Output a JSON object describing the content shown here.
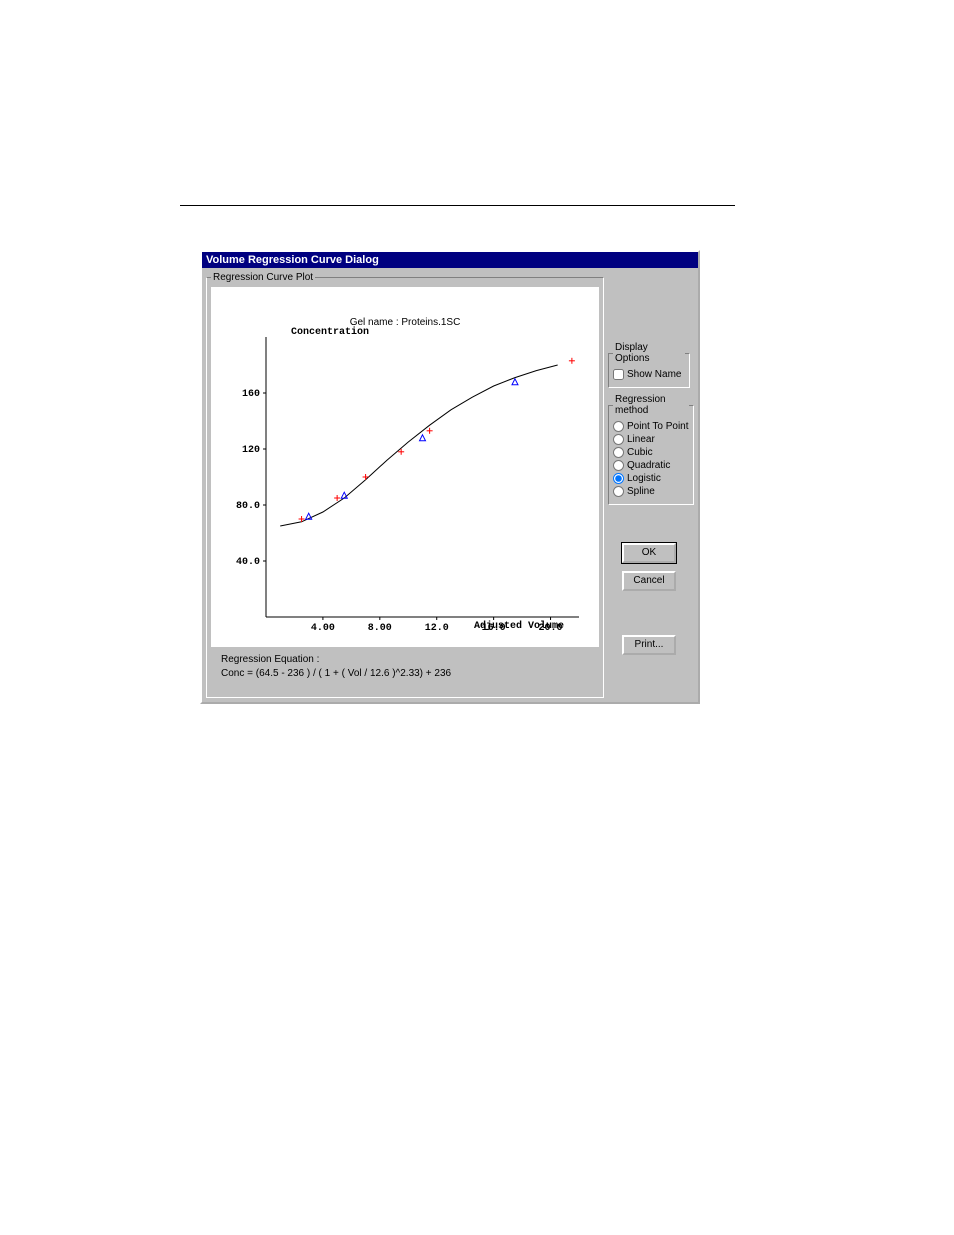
{
  "dialog": {
    "title": "Volume Regression Curve Dialog",
    "plot_group_label": "Regression Curve Plot",
    "chart": {
      "type": "line",
      "gel_name_label": "Gel name : Proteins.1SC",
      "y_axis_label": "Concentration",
      "x_axis_label": "Adjusted Volume",
      "y_ticks": [
        40.0,
        80.0,
        120,
        160
      ],
      "y_tick_labels": [
        "40.0",
        "80.0",
        "120",
        "160"
      ],
      "x_ticks": [
        4.0,
        8.0,
        12.0,
        16.0,
        20.0
      ],
      "x_tick_labels": [
        "4.00",
        "8.00",
        "12.0",
        "16.0",
        "20.0"
      ],
      "xlim": [
        0,
        22
      ],
      "ylim": [
        0,
        200
      ],
      "curve_color": "#000000",
      "line_width": 1,
      "data_marker_color": "#ff0000",
      "data_marker_style": "plus",
      "fit_marker_color": "#0000ff",
      "fit_marker_style": "triangle",
      "background_color": "#ffffff",
      "axis_color": "#000000",
      "data_points": [
        {
          "x": 2.5,
          "y": 70
        },
        {
          "x": 5.0,
          "y": 85
        },
        {
          "x": 7.0,
          "y": 100
        },
        {
          "x": 9.5,
          "y": 118
        },
        {
          "x": 11.5,
          "y": 133
        },
        {
          "x": 21.5,
          "y": 183
        }
      ],
      "fit_points": [
        {
          "x": 3.0,
          "y": 72
        },
        {
          "x": 5.5,
          "y": 87
        },
        {
          "x": 11.0,
          "y": 128
        },
        {
          "x": 17.5,
          "y": 168
        }
      ],
      "curve": [
        {
          "x": 1.0,
          "y": 65
        },
        {
          "x": 2.5,
          "y": 68
        },
        {
          "x": 4.0,
          "y": 75
        },
        {
          "x": 5.5,
          "y": 85
        },
        {
          "x": 7.0,
          "y": 98
        },
        {
          "x": 8.5,
          "y": 112
        },
        {
          "x": 10.0,
          "y": 125
        },
        {
          "x": 11.5,
          "y": 137
        },
        {
          "x": 13.0,
          "y": 148
        },
        {
          "x": 14.5,
          "y": 157
        },
        {
          "x": 16.0,
          "y": 165
        },
        {
          "x": 17.5,
          "y": 171
        },
        {
          "x": 19.0,
          "y": 176
        },
        {
          "x": 20.5,
          "y": 180
        }
      ]
    },
    "equation": {
      "label": "Regression Equation :",
      "text": "Conc = (64.5 - 236 ) / ( 1 + ( Vol / 12.6 )^2.33) + 236"
    },
    "display_options": {
      "legend": "Display Options",
      "show_name_label": "Show Name",
      "show_name_checked": false
    },
    "regression_method": {
      "legend": "Regression method",
      "options": [
        {
          "label": "Point To Point",
          "checked": false
        },
        {
          "label": "Linear",
          "checked": false
        },
        {
          "label": "Cubic",
          "checked": false
        },
        {
          "label": "Quadratic",
          "checked": false
        },
        {
          "label": "Logistic",
          "checked": true
        },
        {
          "label": "Spline",
          "checked": false
        }
      ]
    },
    "buttons": {
      "ok": "OK",
      "cancel": "Cancel",
      "print": "Print..."
    }
  }
}
